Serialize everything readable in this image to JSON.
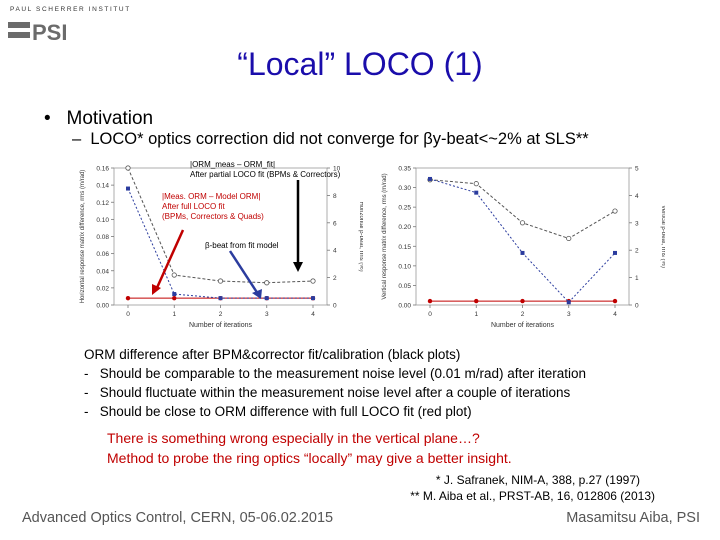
{
  "logo": {
    "institute": "PAUL SCHERRER INSTITUT",
    "mark": "PSI"
  },
  "title": "“Local” LOCO (1)",
  "bullet": {
    "marker": "•",
    "text": "Motivation"
  },
  "sub_bullet": {
    "dash": "–",
    "text": "LOCO* optics correction did not converge for βy-beat<~2% at SLS**"
  },
  "annotations": {
    "orm_meas": [
      "|ORM_meas – ORM_fit|",
      "After partial LOCO fit (BPMs & Correctors)"
    ],
    "orm_model": [
      "|Meas. ORM – Model ORM|",
      "After full LOCO fit",
      "(BPMs, Correctors & Quads)"
    ],
    "beta_beat": "β-beat from fit model"
  },
  "colors": {
    "title": "#1a0dab",
    "red": "#c00000",
    "blue": "#2b3c9e",
    "gray": "#555555"
  },
  "chart_data": [
    {
      "type": "line",
      "title": "",
      "xlabel": "Number of iterations",
      "ylabel": "Horizontal response matrix difference, rms (m/rad)",
      "y2label": "Horizontal β-beat, rms (%)",
      "x": [
        0,
        1,
        2,
        3,
        4
      ],
      "xticks": [
        "0",
        "1",
        "2",
        "3",
        "4"
      ],
      "ylim": [
        0,
        0.16
      ],
      "yticks": [
        "0.00",
        "0.02",
        "0.04",
        "0.06",
        "0.08",
        "0.10",
        "0.12",
        "0.14",
        "0.16"
      ],
      "y2lim": [
        0,
        10
      ],
      "y2ticks": [
        "0",
        "2",
        "4",
        "6",
        "8",
        "10"
      ],
      "series": [
        {
          "name": "ORM difference after partial fit",
          "axis": "left",
          "color": "#555555",
          "values": [
            0.16,
            0.035,
            0.028,
            0.026,
            0.028
          ]
        },
        {
          "name": "ORM difference after full fit",
          "axis": "left",
          "color": "#c00000",
          "values": [
            0.008,
            0.008,
            0.008,
            0.008,
            0.008
          ]
        },
        {
          "name": "β-beat from fit model",
          "axis": "right",
          "color": "#2b3c9e",
          "values": [
            8.5,
            0.8,
            0.5,
            0.5,
            0.5
          ]
        }
      ]
    },
    {
      "type": "line",
      "title": "",
      "xlabel": "Number of iterations",
      "ylabel": "Vertical response matrix difference, rms (m/rad)",
      "y2label": "Vertical β-beat, rms (%)",
      "x": [
        0,
        1,
        2,
        3,
        4
      ],
      "xticks": [
        "0",
        "1",
        "2",
        "3",
        "4"
      ],
      "ylim": [
        0,
        0.35
      ],
      "yticks": [
        "0.00",
        "0.05",
        "0.10",
        "0.15",
        "0.20",
        "0.25",
        "0.30",
        "0.35"
      ],
      "y2lim": [
        0,
        5
      ],
      "y2ticks": [
        "0",
        "1",
        "2",
        "3",
        "4",
        "5"
      ],
      "series": [
        {
          "name": "ORM difference after partial fit",
          "axis": "left",
          "color": "#555555",
          "values": [
            0.32,
            0.31,
            0.21,
            0.17,
            0.24
          ]
        },
        {
          "name": "ORM difference after full fit",
          "axis": "left",
          "color": "#c00000",
          "values": [
            0.01,
            0.01,
            0.01,
            0.01,
            0.01
          ]
        },
        {
          "name": "β-beat from fit model",
          "axis": "right",
          "color": "#2b3c9e",
          "values": [
            4.6,
            4.1,
            1.9,
            0.1,
            1.9
          ]
        }
      ]
    }
  ],
  "orm_text": {
    "heading": "ORM difference after BPM&corrector fit/calibration (black plots)",
    "items": [
      "Should be comparable to the measurement noise level (0.01 m/rad) after iteration",
      "Should fluctuate within the measurement noise level after a couple of iterations",
      "Should be close to ORM difference with full LOCO fit  (red plot)"
    ],
    "dash": "-"
  },
  "conclusion": [
    "There is something wrong especially in the vertical plane…?",
    "Method to probe the ring optics “locally” may give a better insight."
  ],
  "references": [
    "* J. Safranek, NIM-A, 388, p.27 (1997)",
    "** M. Aiba et al., PRST-AB, 16, 012806 (2013)"
  ],
  "footer": {
    "left": "Advanced Optics Control, CERN, 05-06.02.2015",
    "right": "Masamitsu Aiba, PSI"
  }
}
